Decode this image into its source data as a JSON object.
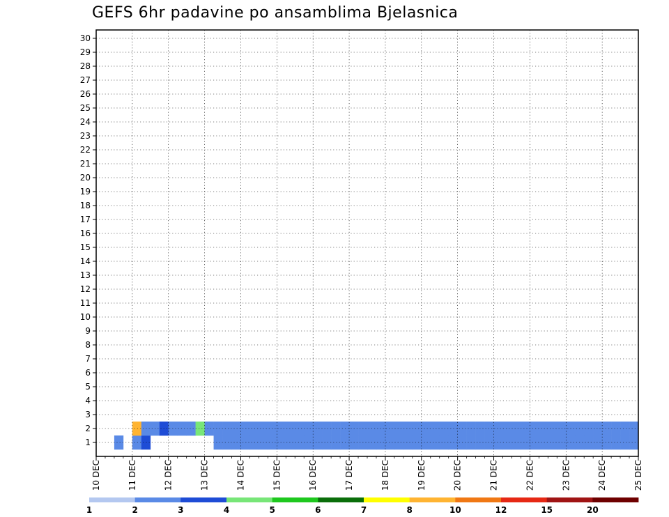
{
  "chart_data": {
    "type": "heatmap",
    "title": "GEFS 6hr padavine po ansamblima Bjelasnica",
    "xlabel": "",
    "ylabel": "",
    "x_tick_labels": [
      "10 DEC",
      "11 DEC",
      "12 DEC",
      "13 DEC",
      "14 DEC",
      "15 DEC",
      "16 DEC",
      "17 DEC",
      "18 DEC",
      "19 DEC",
      "20 DEC",
      "21 DEC",
      "22 DEC",
      "23 DEC",
      "24 DEC",
      "25 DEC"
    ],
    "x_range_days": [
      0,
      15
    ],
    "x_step_hours": 6,
    "y_tick_labels": [
      "1",
      "2",
      "3",
      "4",
      "5",
      "6",
      "7",
      "8",
      "9",
      "10",
      "11",
      "12",
      "13",
      "14",
      "15",
      "16",
      "17",
      "18",
      "19",
      "20",
      "21",
      "22",
      "23",
      "24",
      "25",
      "26",
      "27",
      "28",
      "29",
      "30"
    ],
    "y_range": [
      0,
      30
    ],
    "grid": true,
    "legend_placement": "bottom",
    "legend_labels": [
      "1",
      "2",
      "3",
      "4",
      "5",
      "6",
      "7",
      "8",
      "10",
      "12",
      "15",
      "20"
    ],
    "legend_colors": [
      "#b4c8f0",
      "#5a8ae6",
      "#1e4cd6",
      "#78e678",
      "#1ec81e",
      "#0a6e0a",
      "#ffff00",
      "#ffb432",
      "#f07814",
      "#e62814",
      "#a01414",
      "#6e0000"
    ],
    "cells_note_format": "[time_step_index (6-hour steps from 10 DEC 00Z), member (1-30), color_class_index]",
    "cells": [
      [
        2,
        0,
        1
      ],
      [
        4,
        0,
        1
      ],
      [
        5,
        0,
        2
      ],
      [
        13,
        0,
        1
      ],
      [
        14,
        0,
        1
      ],
      [
        15,
        0,
        1
      ],
      [
        16,
        0,
        1
      ],
      [
        17,
        0,
        1
      ],
      [
        18,
        0,
        1
      ],
      [
        19,
        0,
        1
      ],
      [
        20,
        0,
        1
      ],
      [
        21,
        0,
        1
      ],
      [
        22,
        0,
        1
      ],
      [
        23,
        0,
        1
      ],
      [
        24,
        0,
        1
      ],
      [
        25,
        0,
        1
      ],
      [
        26,
        0,
        1
      ],
      [
        27,
        0,
        1
      ],
      [
        28,
        0,
        1
      ],
      [
        29,
        0,
        1
      ],
      [
        30,
        0,
        1
      ],
      [
        31,
        0,
        1
      ],
      [
        32,
        0,
        1
      ],
      [
        33,
        0,
        1
      ],
      [
        34,
        0,
        1
      ],
      [
        35,
        0,
        1
      ],
      [
        36,
        0,
        1
      ],
      [
        37,
        0,
        1
      ],
      [
        38,
        0,
        1
      ],
      [
        39,
        0,
        1
      ],
      [
        40,
        0,
        1
      ],
      [
        41,
        0,
        1
      ],
      [
        42,
        0,
        1
      ],
      [
        43,
        0,
        1
      ],
      [
        44,
        0,
        1
      ],
      [
        45,
        0,
        1
      ],
      [
        46,
        0,
        1
      ],
      [
        47,
        0,
        1
      ],
      [
        48,
        0,
        1
      ],
      [
        49,
        0,
        1
      ],
      [
        50,
        0,
        1
      ],
      [
        51,
        0,
        1
      ],
      [
        52,
        0,
        1
      ],
      [
        53,
        0,
        1
      ],
      [
        54,
        0,
        1
      ],
      [
        55,
        0,
        1
      ],
      [
        56,
        0,
        1
      ],
      [
        57,
        0,
        1
      ],
      [
        58,
        0,
        1
      ],
      [
        59,
        0,
        1
      ],
      [
        4,
        1,
        7
      ],
      [
        5,
        1,
        1
      ],
      [
        6,
        1,
        1
      ],
      [
        7,
        1,
        2
      ],
      [
        8,
        1,
        1
      ],
      [
        9,
        1,
        1
      ],
      [
        10,
        1,
        1
      ],
      [
        11,
        1,
        3
      ],
      [
        12,
        1,
        1
      ],
      [
        13,
        1,
        1
      ],
      [
        14,
        1,
        1
      ],
      [
        15,
        1,
        1
      ],
      [
        16,
        1,
        1
      ],
      [
        17,
        1,
        1
      ],
      [
        18,
        1,
        1
      ],
      [
        19,
        1,
        1
      ],
      [
        20,
        1,
        1
      ],
      [
        21,
        1,
        1
      ],
      [
        22,
        1,
        1
      ],
      [
        23,
        1,
        1
      ],
      [
        24,
        1,
        1
      ],
      [
        25,
        1,
        1
      ],
      [
        26,
        1,
        1
      ],
      [
        27,
        1,
        1
      ],
      [
        28,
        1,
        1
      ],
      [
        29,
        1,
        1
      ],
      [
        30,
        1,
        1
      ],
      [
        31,
        1,
        1
      ],
      [
        32,
        1,
        1
      ],
      [
        33,
        1,
        1
      ],
      [
        34,
        1,
        1
      ],
      [
        35,
        1,
        1
      ],
      [
        36,
        1,
        1
      ],
      [
        37,
        1,
        1
      ],
      [
        38,
        1,
        1
      ],
      [
        39,
        1,
        1
      ],
      [
        40,
        1,
        1
      ],
      [
        41,
        1,
        1
      ],
      [
        42,
        1,
        1
      ],
      [
        43,
        1,
        1
      ],
      [
        44,
        1,
        1
      ],
      [
        45,
        1,
        1
      ],
      [
        46,
        1,
        1
      ],
      [
        47,
        1,
        1
      ],
      [
        48,
        1,
        1
      ],
      [
        49,
        1,
        1
      ],
      [
        50,
        1,
        1
      ],
      [
        51,
        1,
        1
      ],
      [
        52,
        1,
        1
      ],
      [
        53,
        1,
        1
      ],
      [
        54,
        1,
        1
      ],
      [
        55,
        1,
        1
      ],
      [
        56,
        1,
        1
      ],
      [
        57,
        1,
        1
      ],
      [
        58,
        1,
        1
      ],
      [
        59,
        1,
        1
      ]
    ]
  }
}
